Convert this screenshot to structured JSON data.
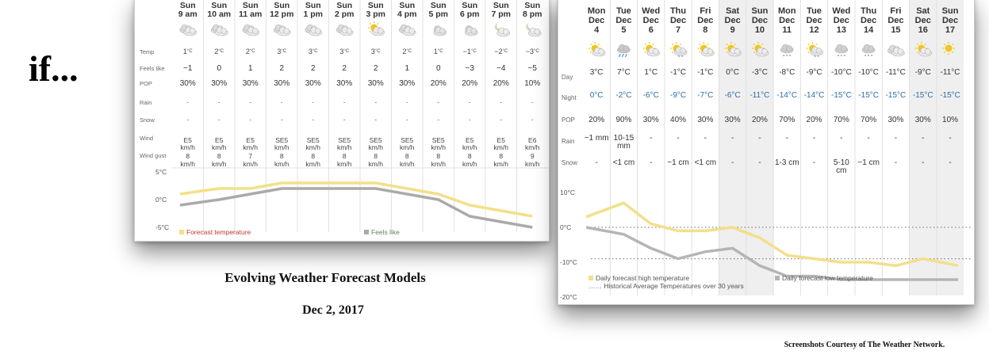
{
  "slide": {
    "title": "if...",
    "caption_title": "Evolving Weather Forecast Models",
    "caption_date": "Dec 2, 2017",
    "credit": "Screenshots Courtesy of The Weather Network."
  },
  "hourly": {
    "row_labels": [
      "Temp",
      "Feels like",
      "POP",
      "Rain",
      "Snow",
      "Wind",
      "Wind gust"
    ],
    "hours": [
      {
        "day": "Sun",
        "time": "9 am",
        "icon": "cloudy-icon",
        "temp": "1",
        "feels": "−1",
        "pop": "30%",
        "rain": "-",
        "snow": "-",
        "wind": "E5",
        "gust": "8"
      },
      {
        "day": "Sun",
        "time": "10 am",
        "icon": "cloudy-icon",
        "temp": "2",
        "feels": "0",
        "pop": "30%",
        "rain": "-",
        "snow": "-",
        "wind": "E5",
        "gust": "8"
      },
      {
        "day": "Sun",
        "time": "11 am",
        "icon": "cloudy-icon",
        "temp": "2",
        "feels": "1",
        "pop": "30%",
        "rain": "-",
        "snow": "-",
        "wind": "E5",
        "gust": "7"
      },
      {
        "day": "Sun",
        "time": "12 pm",
        "icon": "cloudy-icon",
        "temp": "3",
        "feels": "2",
        "pop": "30%",
        "rain": "-",
        "snow": "-",
        "wind": "SE5",
        "gust": "8"
      },
      {
        "day": "Sun",
        "time": "1 pm",
        "icon": "cloudy-icon",
        "temp": "3",
        "feels": "2",
        "pop": "30%",
        "rain": "-",
        "snow": "-",
        "wind": "SE5",
        "gust": "8"
      },
      {
        "day": "Sun",
        "time": "2 pm",
        "icon": "cloudy-icon",
        "temp": "3",
        "feels": "2",
        "pop": "30%",
        "rain": "-",
        "snow": "-",
        "wind": "SE5",
        "gust": "8"
      },
      {
        "day": "Sun",
        "time": "3 pm",
        "icon": "partly-sunny-icon",
        "temp": "3",
        "feels": "2",
        "pop": "30%",
        "rain": "-",
        "snow": "-",
        "wind": "SE5",
        "gust": "8"
      },
      {
        "day": "Sun",
        "time": "4 pm",
        "icon": "cloudy-icon",
        "temp": "2",
        "feels": "1",
        "pop": "30%",
        "rain": "-",
        "snow": "-",
        "wind": "SE5",
        "gust": "8"
      },
      {
        "day": "Sun",
        "time": "5 pm",
        "icon": "night-cloudy-icon",
        "temp": "1",
        "feels": "0",
        "pop": "20%",
        "rain": "-",
        "snow": "-",
        "wind": "SE5",
        "gust": "8"
      },
      {
        "day": "Sun",
        "time": "6 pm",
        "icon": "night-cloudy-icon",
        "temp": "−1",
        "feels": "−3",
        "pop": "20%",
        "rain": "-",
        "snow": "-",
        "wind": "E5",
        "gust": "8"
      },
      {
        "day": "Sun",
        "time": "7 pm",
        "icon": "moon-cloud-icon",
        "temp": "−2",
        "feels": "−4",
        "pop": "20%",
        "rain": "-",
        "snow": "-",
        "wind": "E5",
        "gust": "8"
      },
      {
        "day": "Sun",
        "time": "8 pm",
        "icon": "moon-cloud-icon",
        "temp": "−3",
        "feels": "−5",
        "pop": "10%",
        "rain": "-",
        "snow": "-",
        "wind": "E6",
        "gust": "9"
      }
    ],
    "temp_unit": "°C",
    "wind_unit": "km/h",
    "axis_labels": [
      "5°C",
      "0°C",
      "-5°C"
    ],
    "legend": {
      "forecast": "Forecast temperature",
      "feels": "Feels like"
    },
    "colors": {
      "forecast": "#f2e08a",
      "feels": "#aaaaaa",
      "forecast_text": "#c0392b",
      "feels_text": "#5a8a5a"
    }
  },
  "daily": {
    "row_labels": [
      "Day",
      "Night",
      "POP",
      "Rain",
      "Snow"
    ],
    "days": [
      {
        "dow": "Mon",
        "mon": "Dec",
        "date": "4",
        "icon": "sun-cloud-icon",
        "day": "3°C",
        "night": "0°C",
        "pop": "20%",
        "rain": "~1 mm",
        "snow": "-",
        "weekend": false
      },
      {
        "dow": "Tue",
        "mon": "Dec",
        "date": "5",
        "icon": "rain-icon",
        "day": "7°C",
        "night": "-2°C",
        "pop": "90%",
        "rain": "10-15 mm",
        "snow": "<1 cm",
        "weekend": false
      },
      {
        "dow": "Wed",
        "mon": "Dec",
        "date": "6",
        "icon": "sun-cloud-icon",
        "day": "1°C",
        "night": "-6°C",
        "pop": "30%",
        "rain": "-",
        "snow": "-",
        "weekend": false
      },
      {
        "dow": "Thu",
        "mon": "Dec",
        "date": "7",
        "icon": "sun-snow-icon",
        "day": "-1°C",
        "night": "-9°C",
        "pop": "40%",
        "rain": "-",
        "snow": "~1 cm",
        "weekend": false
      },
      {
        "dow": "Fri",
        "mon": "Dec",
        "date": "8",
        "icon": "sun-cloud-icon",
        "day": "-1°C",
        "night": "-7°C",
        "pop": "30%",
        "rain": "-",
        "snow": "<1 cm",
        "weekend": false
      },
      {
        "dow": "Sat",
        "mon": "Dec",
        "date": "9",
        "icon": "sun-cloud-icon",
        "day": "0°C",
        "night": "-6°C",
        "pop": "30%",
        "rain": "-",
        "snow": "-",
        "weekend": true
      },
      {
        "dow": "Sun",
        "mon": "Dec",
        "date": "10",
        "icon": "sun-cloud-icon",
        "day": "-3°C",
        "night": "-11°C",
        "pop": "20%",
        "rain": "-",
        "snow": "-",
        "weekend": true
      },
      {
        "dow": "Mon",
        "mon": "Dec",
        "date": "11",
        "icon": "snow-icon",
        "day": "-8°C",
        "night": "-14°C",
        "pop": "70%",
        "rain": "-",
        "snow": "1-3 cm",
        "weekend": false
      },
      {
        "dow": "Tue",
        "mon": "Dec",
        "date": "12",
        "icon": "sun-snow-icon",
        "day": "-9°C",
        "night": "-14°C",
        "pop": "20%",
        "rain": "-",
        "snow": "-",
        "weekend": false
      },
      {
        "dow": "Wed",
        "mon": "Dec",
        "date": "13",
        "icon": "snow-icon",
        "day": "-10°C",
        "night": "-15°C",
        "pop": "70%",
        "rain": "-",
        "snow": "5-10 cm",
        "weekend": false
      },
      {
        "dow": "Thu",
        "mon": "Dec",
        "date": "14",
        "icon": "snow-icon",
        "day": "-10°C",
        "night": "-15°C",
        "pop": "70%",
        "rain": "-",
        "snow": "~1 cm",
        "weekend": false
      },
      {
        "dow": "Fri",
        "mon": "Dec",
        "date": "15",
        "icon": "cloudy-icon",
        "day": "-11°C",
        "night": "-15°C",
        "pop": "30%",
        "rain": "-",
        "snow": "-",
        "weekend": false
      },
      {
        "dow": "Sat",
        "mon": "Dec",
        "date": "16",
        "icon": "sun-cloud-icon",
        "day": "-9°C",
        "night": "-15°C",
        "pop": "30%",
        "rain": "-",
        "snow": "-",
        "weekend": true
      },
      {
        "dow": "Sun",
        "mon": "Dec",
        "date": "17",
        "icon": "sun-icon",
        "day": "-11°C",
        "night": "-15°C",
        "pop": "10%",
        "rain": "-",
        "snow": "-",
        "weekend": true
      }
    ],
    "axis_labels": [
      "10°C",
      "0°C",
      "-10°C",
      "-20°C"
    ],
    "legend": {
      "high": "Daily forecast high temperature",
      "low": "Daily forecast low temperature",
      "avg": "Historical Average Temperatures over 30 years"
    },
    "colors": {
      "high": "#f2e08a",
      "low": "#b5b5b5",
      "night_text": "#2e6da4",
      "weekend_bg": "#efefef"
    }
  },
  "chart_data": [
    {
      "type": "line",
      "x": [
        "9 am",
        "10 am",
        "11 am",
        "12 pm",
        "1 pm",
        "2 pm",
        "3 pm",
        "4 pm",
        "5 pm",
        "6 pm",
        "7 pm",
        "8 pm"
      ],
      "series": [
        {
          "name": "Forecast temperature",
          "values": [
            1,
            2,
            2,
            3,
            3,
            3,
            3,
            2,
            1,
            -1,
            -2,
            -3
          ]
        },
        {
          "name": "Feels like",
          "values": [
            -1,
            0,
            1,
            2,
            2,
            2,
            2,
            1,
            0,
            -3,
            -4,
            -5
          ]
        }
      ],
      "ylim": [
        -5,
        5
      ],
      "legend": "bottom"
    },
    {
      "type": "line",
      "x": [
        "Dec 4",
        "Dec 5",
        "Dec 6",
        "Dec 7",
        "Dec 8",
        "Dec 9",
        "Dec 10",
        "Dec 11",
        "Dec 12",
        "Dec 13",
        "Dec 14",
        "Dec 15",
        "Dec 16",
        "Dec 17"
      ],
      "series": [
        {
          "name": "Daily forecast high temperature",
          "values": [
            3,
            7,
            1,
            -1,
            -1,
            0,
            -3,
            -8,
            -9,
            -10,
            -10,
            -11,
            -9,
            -11
          ]
        },
        {
          "name": "Daily forecast low temperature",
          "values": [
            0,
            -2,
            -6,
            -9,
            -7,
            -6,
            -11,
            -14,
            -14,
            -15,
            -15,
            -15,
            -15,
            -15
          ]
        }
      ],
      "ylim": [
        -20,
        10
      ],
      "legend": "bottom"
    }
  ]
}
